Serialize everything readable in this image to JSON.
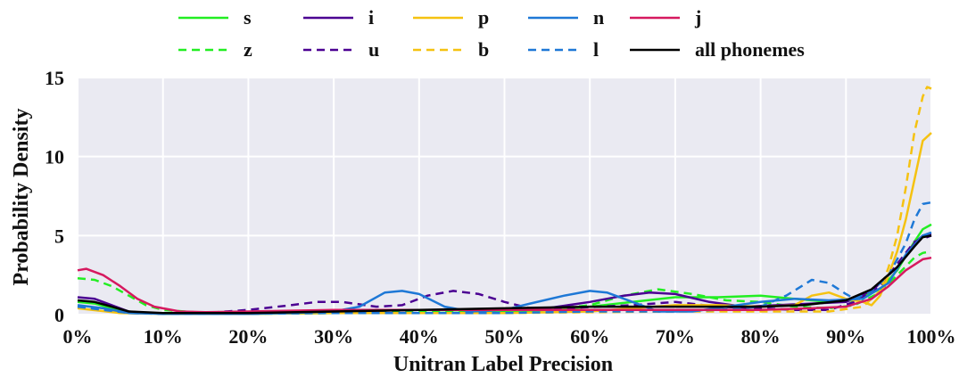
{
  "chart_data": {
    "type": "line",
    "xlabel": "Unitran Label Precision",
    "ylabel": "Probability Density",
    "xlim": [
      0,
      100
    ],
    "ylim": [
      0,
      15
    ],
    "x_ticks": [
      "0%",
      "10%",
      "20%",
      "30%",
      "40%",
      "50%",
      "60%",
      "70%",
      "80%",
      "90%",
      "100%"
    ],
    "y_ticks": [
      "0",
      "5",
      "10",
      "15"
    ],
    "grid": true,
    "background": "#eaeaf2",
    "legend_position": "top",
    "series": [
      {
        "name": "s",
        "color": "#22ee22",
        "dash": "solid",
        "points": [
          [
            0,
            0.8
          ],
          [
            2,
            0.7
          ],
          [
            4,
            0.4
          ],
          [
            6,
            0.2
          ],
          [
            8,
            0.1
          ],
          [
            10,
            0.05
          ],
          [
            20,
            0.05
          ],
          [
            30,
            0.1
          ],
          [
            40,
            0.1
          ],
          [
            50,
            0.15
          ],
          [
            55,
            0.3
          ],
          [
            60,
            0.5
          ],
          [
            65,
            0.8
          ],
          [
            70,
            1.1
          ],
          [
            75,
            1.1
          ],
          [
            80,
            1.2
          ],
          [
            84,
            1.0
          ],
          [
            88,
            0.8
          ],
          [
            91,
            0.9
          ],
          [
            94,
            1.6
          ],
          [
            96,
            2.8
          ],
          [
            98,
            4.6
          ],
          [
            99,
            5.4
          ],
          [
            100,
            5.7
          ]
        ]
      },
      {
        "name": "z",
        "color": "#22ee22",
        "dash": "dashed",
        "points": [
          [
            0,
            2.3
          ],
          [
            2,
            2.2
          ],
          [
            4,
            1.8
          ],
          [
            6,
            1.2
          ],
          [
            8,
            0.6
          ],
          [
            10,
            0.3
          ],
          [
            15,
            0.1
          ],
          [
            20,
            0.1
          ],
          [
            30,
            0.1
          ],
          [
            40,
            0.15
          ],
          [
            50,
            0.2
          ],
          [
            55,
            0.3
          ],
          [
            60,
            0.6
          ],
          [
            64,
            1.2
          ],
          [
            68,
            1.6
          ],
          [
            72,
            1.3
          ],
          [
            76,
            0.9
          ],
          [
            80,
            0.8
          ],
          [
            84,
            0.5
          ],
          [
            88,
            0.4
          ],
          [
            91,
            0.6
          ],
          [
            94,
            1.4
          ],
          [
            96,
            2.5
          ],
          [
            98,
            3.6
          ],
          [
            99,
            3.9
          ],
          [
            100,
            4.0
          ]
        ]
      },
      {
        "name": "i",
        "color": "#4b0092",
        "dash": "solid",
        "points": [
          [
            0,
            1.1
          ],
          [
            2,
            1.0
          ],
          [
            4,
            0.6
          ],
          [
            6,
            0.2
          ],
          [
            8,
            0.1
          ],
          [
            15,
            0.05
          ],
          [
            20,
            0.05
          ],
          [
            30,
            0.2
          ],
          [
            40,
            0.3
          ],
          [
            50,
            0.3
          ],
          [
            55,
            0.4
          ],
          [
            60,
            0.8
          ],
          [
            64,
            1.2
          ],
          [
            67,
            1.4
          ],
          [
            70,
            1.3
          ],
          [
            74,
            0.8
          ],
          [
            78,
            0.5
          ],
          [
            82,
            0.6
          ],
          [
            86,
            0.7
          ],
          [
            90,
            0.8
          ],
          [
            93,
            1.5
          ],
          [
            96,
            3.0
          ],
          [
            98,
            4.5
          ],
          [
            99,
            5.0
          ],
          [
            100,
            5.1
          ]
        ]
      },
      {
        "name": "u",
        "color": "#4b0092",
        "dash": "dashed",
        "points": [
          [
            0,
            0.5
          ],
          [
            2,
            0.4
          ],
          [
            5,
            0.15
          ],
          [
            10,
            0.05
          ],
          [
            15,
            0.1
          ],
          [
            20,
            0.3
          ],
          [
            25,
            0.6
          ],
          [
            28,
            0.8
          ],
          [
            31,
            0.8
          ],
          [
            35,
            0.5
          ],
          [
            38,
            0.6
          ],
          [
            41,
            1.2
          ],
          [
            44,
            1.5
          ],
          [
            47,
            1.3
          ],
          [
            50,
            0.8
          ],
          [
            53,
            0.4
          ],
          [
            57,
            0.4
          ],
          [
            61,
            0.5
          ],
          [
            65,
            0.6
          ],
          [
            70,
            0.8
          ],
          [
            75,
            0.5
          ],
          [
            80,
            0.4
          ],
          [
            84,
            0.3
          ],
          [
            88,
            0.3
          ],
          [
            91,
            0.8
          ],
          [
            94,
            1.8
          ],
          [
            96,
            3.2
          ],
          [
            98,
            4.6
          ],
          [
            100,
            5.0
          ]
        ]
      },
      {
        "name": "p",
        "color": "#f5c211",
        "dash": "solid",
        "points": [
          [
            0,
            0.4
          ],
          [
            5,
            0.1
          ],
          [
            10,
            0.05
          ],
          [
            20,
            0.05
          ],
          [
            30,
            0.1
          ],
          [
            40,
            0.1
          ],
          [
            50,
            0.1
          ],
          [
            60,
            0.2
          ],
          [
            65,
            0.4
          ],
          [
            70,
            0.6
          ],
          [
            75,
            0.6
          ],
          [
            80,
            0.5
          ],
          [
            84,
            0.6
          ],
          [
            86,
            1.2
          ],
          [
            88,
            1.4
          ],
          [
            90,
            1.0
          ],
          [
            92,
            0.8
          ],
          [
            93,
            0.6
          ],
          [
            94,
            1.2
          ],
          [
            95,
            2.5
          ],
          [
            96,
            4.0
          ],
          [
            97,
            6.0
          ],
          [
            98,
            8.5
          ],
          [
            99,
            11.0
          ],
          [
            100,
            11.5
          ]
        ]
      },
      {
        "name": "b",
        "color": "#f5c211",
        "dash": "dashed",
        "points": [
          [
            0,
            0.5
          ],
          [
            5,
            0.1
          ],
          [
            10,
            0.05
          ],
          [
            20,
            0.05
          ],
          [
            30,
            0.1
          ],
          [
            40,
            0.1
          ],
          [
            50,
            0.1
          ],
          [
            60,
            0.15
          ],
          [
            70,
            0.2
          ],
          [
            80,
            0.2
          ],
          [
            88,
            0.2
          ],
          [
            92,
            0.5
          ],
          [
            94,
            1.5
          ],
          [
            95,
            3.0
          ],
          [
            96,
            5.0
          ],
          [
            97,
            8.0
          ],
          [
            98,
            11.5
          ],
          [
            99,
            13.8
          ],
          [
            99.5,
            14.4
          ],
          [
            100,
            14.3
          ]
        ]
      },
      {
        "name": "n",
        "color": "#1e78d6",
        "dash": "solid",
        "points": [
          [
            0,
            0.6
          ],
          [
            3,
            0.4
          ],
          [
            6,
            0.1
          ],
          [
            10,
            0.05
          ],
          [
            20,
            0.05
          ],
          [
            25,
            0.1
          ],
          [
            30,
            0.2
          ],
          [
            33,
            0.5
          ],
          [
            36,
            1.4
          ],
          [
            38,
            1.5
          ],
          [
            40,
            1.3
          ],
          [
            43,
            0.5
          ],
          [
            46,
            0.2
          ],
          [
            50,
            0.3
          ],
          [
            53,
            0.7
          ],
          [
            57,
            1.2
          ],
          [
            60,
            1.5
          ],
          [
            62,
            1.4
          ],
          [
            65,
            0.8
          ],
          [
            68,
            0.2
          ],
          [
            72,
            0.2
          ],
          [
            76,
            0.5
          ],
          [
            80,
            0.8
          ],
          [
            84,
            1.0
          ],
          [
            88,
            0.9
          ],
          [
            92,
            1.0
          ],
          [
            95,
            2.0
          ],
          [
            97,
            3.8
          ],
          [
            99,
            5.0
          ],
          [
            100,
            5.2
          ]
        ]
      },
      {
        "name": "l",
        "color": "#1e78d6",
        "dash": "dashed",
        "points": [
          [
            0,
            0.5
          ],
          [
            3,
            0.3
          ],
          [
            6,
            0.1
          ],
          [
            10,
            0.05
          ],
          [
            20,
            0.05
          ],
          [
            30,
            0.1
          ],
          [
            40,
            0.1
          ],
          [
            50,
            0.1
          ],
          [
            60,
            0.2
          ],
          [
            70,
            0.2
          ],
          [
            75,
            0.3
          ],
          [
            80,
            0.5
          ],
          [
            83,
            1.2
          ],
          [
            86,
            2.2
          ],
          [
            88,
            2.0
          ],
          [
            90,
            1.3
          ],
          [
            91,
            1.0
          ],
          [
            93,
            1.5
          ],
          [
            95,
            2.5
          ],
          [
            97,
            4.5
          ],
          [
            98,
            6.0
          ],
          [
            99,
            7.0
          ],
          [
            100,
            7.1
          ]
        ]
      },
      {
        "name": "j",
        "color": "#d6195f",
        "dash": "solid",
        "points": [
          [
            0,
            2.8
          ],
          [
            1,
            2.9
          ],
          [
            3,
            2.5
          ],
          [
            5,
            1.8
          ],
          [
            7,
            1.0
          ],
          [
            9,
            0.5
          ],
          [
            12,
            0.2
          ],
          [
            15,
            0.15
          ],
          [
            20,
            0.2
          ],
          [
            30,
            0.3
          ],
          [
            40,
            0.3
          ],
          [
            50,
            0.3
          ],
          [
            60,
            0.3
          ],
          [
            70,
            0.3
          ],
          [
            80,
            0.3
          ],
          [
            86,
            0.4
          ],
          [
            90,
            0.5
          ],
          [
            93,
            1.0
          ],
          [
            95,
            1.8
          ],
          [
            97,
            2.8
          ],
          [
            99,
            3.5
          ],
          [
            100,
            3.6
          ]
        ]
      },
      {
        "name": "all phonemes",
        "color": "#000000",
        "dash": "solid",
        "points": [
          [
            0,
            0.9
          ],
          [
            2,
            0.8
          ],
          [
            4,
            0.5
          ],
          [
            6,
            0.2
          ],
          [
            10,
            0.1
          ],
          [
            20,
            0.1
          ],
          [
            30,
            0.2
          ],
          [
            40,
            0.3
          ],
          [
            50,
            0.4
          ],
          [
            60,
            0.5
          ],
          [
            70,
            0.5
          ],
          [
            80,
            0.5
          ],
          [
            85,
            0.6
          ],
          [
            90,
            0.9
          ],
          [
            93,
            1.6
          ],
          [
            96,
            3.0
          ],
          [
            98,
            4.3
          ],
          [
            99,
            4.9
          ],
          [
            100,
            5.0
          ]
        ]
      }
    ]
  }
}
